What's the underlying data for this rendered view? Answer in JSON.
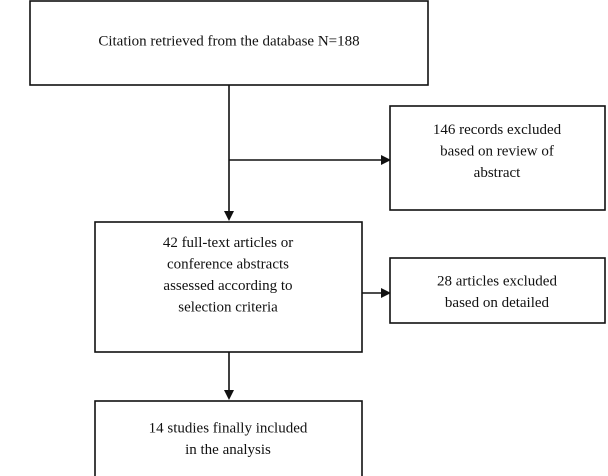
{
  "nodes": [
    {
      "lines": [
        "Citation retrieved from the database N=188"
      ]
    },
    {
      "lines": [
        "146 records excluded",
        "based on review of",
        "abstract"
      ]
    },
    {
      "lines": [
        "42 full-text articles or",
        "conference abstracts",
        "assessed according to",
        "selection criteria"
      ]
    },
    {
      "lines": [
        "28 articles excluded",
        "based on detailed"
      ]
    },
    {
      "lines": [
        "14 studies finally included",
        "in the analysis"
      ]
    }
  ]
}
